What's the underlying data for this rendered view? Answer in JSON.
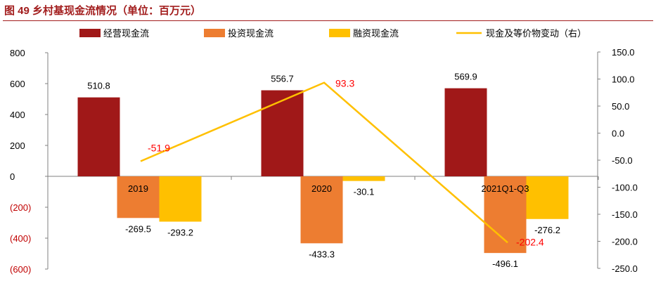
{
  "title": "图 49  乡村基现金流情况（单位：百万元）",
  "colors": {
    "title": "#a21d1d",
    "operating": "#a01818",
    "investing": "#ed7d31",
    "financing": "#ffc000",
    "net_change": "#ffc000",
    "negative_tick": "#c00000",
    "line_label": "#ff0000"
  },
  "chart_data": {
    "type": "bar",
    "categories": [
      "2019",
      "2020",
      "2021Q1-Q3"
    ],
    "series": [
      {
        "name": "经营现金流",
        "type": "bar",
        "axis": "left",
        "values": [
          510.8,
          556.7,
          569.9
        ],
        "labels": [
          "510.8",
          "556.7",
          "569.9"
        ]
      },
      {
        "name": "投资现金流",
        "type": "bar",
        "axis": "left",
        "values": [
          -269.5,
          -433.3,
          -496.1
        ],
        "labels": [
          "-269.5",
          "-433.3",
          "-496.1"
        ]
      },
      {
        "name": "融资现金流",
        "type": "bar",
        "axis": "left",
        "values": [
          -293.2,
          -30.1,
          -276.2
        ],
        "labels": [
          "-293.2",
          "-30.1",
          "-276.2"
        ]
      },
      {
        "name": "现金及等价物变动（右）",
        "type": "line",
        "axis": "right",
        "values": [
          -51.9,
          93.3,
          -202.4
        ],
        "labels": [
          "-51.9",
          "93.3",
          "-202.4"
        ]
      }
    ],
    "y_left": {
      "min": -600,
      "max": 800,
      "ticks": [
        800,
        600,
        400,
        200,
        0,
        -200,
        -400,
        -600
      ],
      "tick_labels": [
        "800",
        "600",
        "400",
        "200",
        "0",
        "(200)",
        "(400)",
        "(600)"
      ]
    },
    "y_right": {
      "min": -250,
      "max": 150,
      "ticks": [
        150,
        100,
        50,
        0,
        -50,
        -100,
        -150,
        -200,
        -250
      ],
      "tick_labels": [
        "150.0",
        "100.0",
        "50.0",
        "0.0",
        "-50.0",
        "-100.0",
        "-150.0",
        "-200.0",
        "-250.0"
      ]
    },
    "legend_position": "top",
    "grid": false
  }
}
